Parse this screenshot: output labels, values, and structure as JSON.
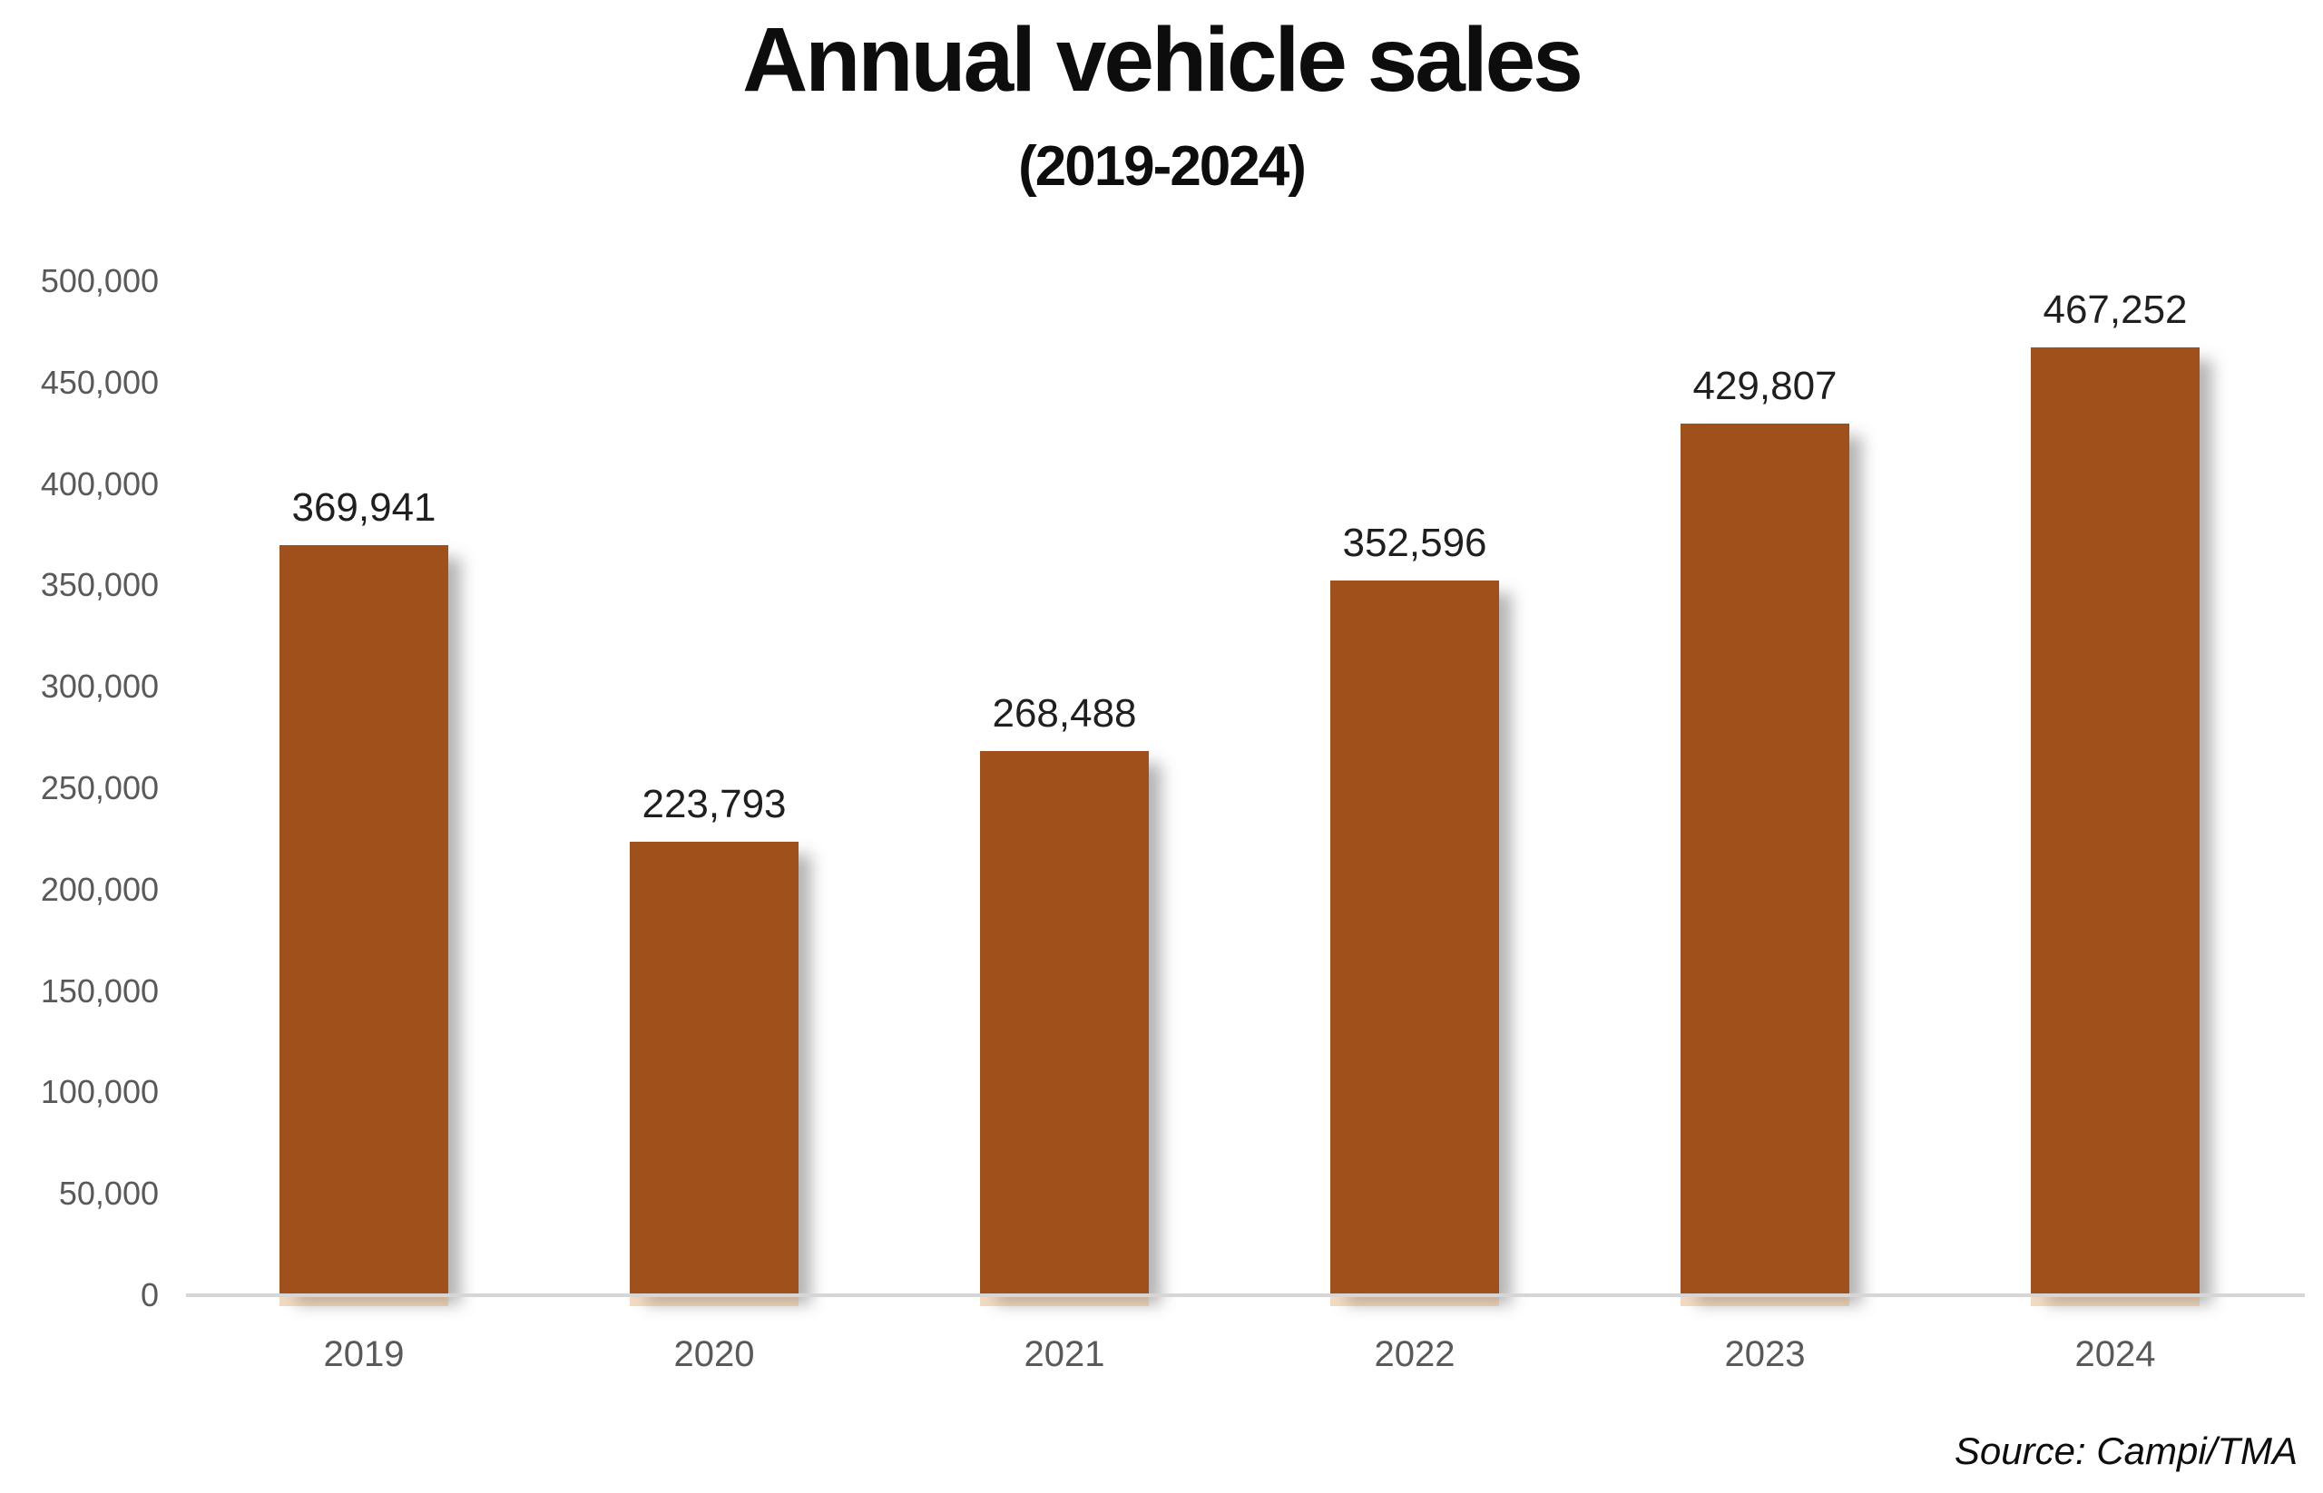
{
  "title": "Annual vehicle sales",
  "subtitle": "(2019-2024)",
  "source": "Source: Campi/TMA",
  "colors": {
    "bar": "#a0511b",
    "axis_line": "#d6d6d6",
    "tick_label": "#595959",
    "value_label": "#1f1f1f",
    "title": "#0d0d0d",
    "background": "#ffffff"
  },
  "chart_data": {
    "type": "bar",
    "title": "Annual vehicle sales",
    "subtitle": "(2019-2024)",
    "categories": [
      "2019",
      "2020",
      "2021",
      "2022",
      "2023",
      "2024"
    ],
    "values": [
      369941,
      223793,
      268488,
      352596,
      429807,
      467252
    ],
    "value_labels": [
      "369,941",
      "223,793",
      "268,488",
      "352,596",
      "429,807",
      "467,252"
    ],
    "xlabel": "",
    "ylabel": "",
    "ylim": [
      0,
      500000
    ],
    "ytick_step": 50000,
    "yticks": [
      "0",
      "50,000",
      "100,000",
      "150,000",
      "200,000",
      "250,000",
      "300,000",
      "350,000",
      "400,000",
      "450,000",
      "500,000"
    ],
    "grid": false,
    "legend": false,
    "source": "Source: Campi/TMA"
  }
}
